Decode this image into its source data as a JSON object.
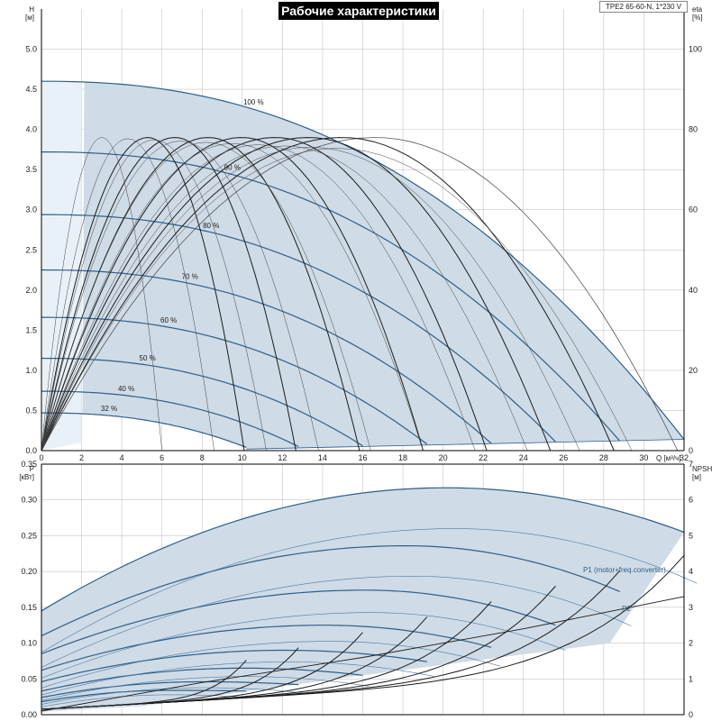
{
  "header": {
    "title": "Рабочие характеристики",
    "model": "TPE2 65-60-N, 1*230 V"
  },
  "chart_data": [
    {
      "type": "line",
      "name": "head",
      "xlabel": "Q [м³/ч]",
      "ylabel_symbol": "H",
      "ylabel_unit": "[м]",
      "y2label_symbol": "eta",
      "y2label_unit": "[%]",
      "xlim": [
        0,
        32
      ],
      "ylim": [
        0,
        5.5
      ],
      "y2lim": [
        0,
        110
      ],
      "x_ticks": [
        "0",
        "2",
        "4",
        "6",
        "8",
        "10",
        "12",
        "14",
        "16",
        "18",
        "20",
        "22",
        "24",
        "26",
        "28",
        "30",
        "32"
      ],
      "y_ticks": [
        "0.0",
        "0.5",
        "1.0",
        "1.5",
        "2.0",
        "2.5",
        "3.0",
        "3.5",
        "4.0",
        "4.5",
        "5.0"
      ],
      "y2_ticks": [
        "0",
        "20",
        "40",
        "60",
        "80",
        "100"
      ],
      "grid": true,
      "speed_curves": [
        {
          "label": "100 %",
          "h0": 4.6,
          "qmax": 32.0,
          "hend": 0.14
        },
        {
          "label": "90 %",
          "h0": 3.72,
          "qmax": 28.8,
          "hend": 0.12
        },
        {
          "label": "80 %",
          "h0": 2.94,
          "qmax": 25.6,
          "hend": 0.11
        },
        {
          "label": "70 %",
          "h0": 2.25,
          "qmax": 22.4,
          "hend": 0.09
        },
        {
          "label": "60 %",
          "h0": 1.66,
          "qmax": 19.2,
          "hend": 0.08
        },
        {
          "label": "50 %",
          "h0": 1.15,
          "qmax": 16.0,
          "hend": 0.06
        },
        {
          "label": "40 %",
          "h0": 0.74,
          "qmax": 12.8,
          "hend": 0.05
        },
        {
          "label": "32 %",
          "h0": 0.47,
          "qmax": 10.2,
          "hend": 0.04
        }
      ],
      "eta_peak_percent": 78,
      "eta_peak_q_per_100": 0.52
    },
    {
      "type": "line",
      "name": "power",
      "xlabel": "",
      "ylabel_symbol": "P",
      "ylabel_unit": "[кВт]",
      "y2label_symbol": "NPSH",
      "y2label_unit": "[м]",
      "xlim": [
        0,
        32
      ],
      "ylim": [
        0,
        0.35
      ],
      "y2lim": [
        0,
        7
      ],
      "y_ticks": [
        "0.00",
        "0.05",
        "0.10",
        "0.15",
        "0.20",
        "0.25",
        "0.30",
        "0.35"
      ],
      "y2_ticks": [
        "0",
        "1",
        "2",
        "3",
        "4",
        "5",
        "6",
        "7"
      ],
      "grid": true,
      "p1_speed_curves": [
        {
          "label": "100 %",
          "p0": 0.145,
          "pmax": 0.317,
          "qmax": 32.0,
          "pend": 0.255
        },
        {
          "label": "90 %",
          "p0": 0.11,
          "pmax": 0.236,
          "qmax": 28.8,
          "pend": 0.172
        },
        {
          "label": "80 %",
          "p0": 0.085,
          "pmax": 0.174,
          "qmax": 25.6,
          "pend": 0.125
        },
        {
          "label": "70 %",
          "p0": 0.062,
          "pmax": 0.125,
          "qmax": 22.4,
          "pend": 0.094
        },
        {
          "label": "60 %",
          "p0": 0.046,
          "pmax": 0.09,
          "qmax": 19.2,
          "pend": 0.074
        },
        {
          "label": "50 %",
          "p0": 0.033,
          "pmax": 0.065,
          "qmax": 16.0,
          "pend": 0.055
        },
        {
          "label": "40 %",
          "p0": 0.024,
          "pmax": 0.046,
          "qmax": 12.8,
          "pend": 0.042
        },
        {
          "label": "32 %",
          "p0": 0.018,
          "pmax": 0.034,
          "qmax": 10.2,
          "pend": 0.033
        }
      ],
      "series_labels": {
        "p1": "P1 (motor+freq.converter)",
        "p2": "P2"
      },
      "npsh_curve": {
        "q": [
          0,
          8,
          16,
          20,
          24,
          28,
          32
        ],
        "npsh": [
          0.1,
          0.9,
          1.6,
          2.0,
          2.4,
          2.85,
          3.3
        ]
      }
    }
  ]
}
